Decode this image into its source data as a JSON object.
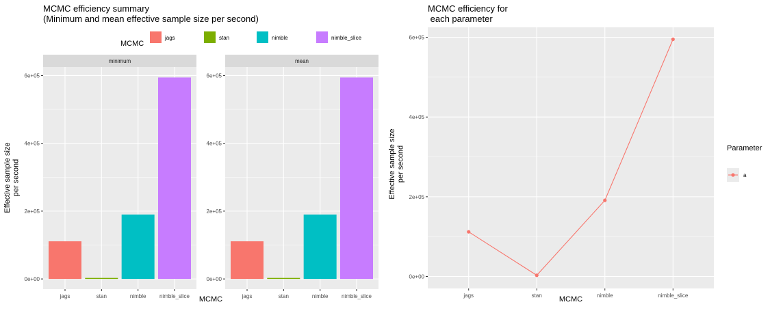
{
  "chart_data": [
    {
      "type": "bar",
      "title": "MCMC efficiency summary\n(Minimum and mean effective sample size per second)",
      "xlabel": "MCMC",
      "ylabel": "Effective sample size\nper second",
      "categories": [
        "jags",
        "stan",
        "nimble",
        "nimble_slice"
      ],
      "colors": [
        "#F8766D",
        "#7CAE00",
        "#00BFC4",
        "#C77CFF"
      ],
      "legend": {
        "title": "MCMC",
        "position": "top",
        "entries": [
          "jags",
          "stan",
          "nimble",
          "nimble_slice"
        ]
      },
      "facets": [
        {
          "name": "minimum",
          "values": [
            111000,
            3000,
            190000,
            594000
          ]
        },
        {
          "name": "mean",
          "values": [
            111000,
            3000,
            190000,
            594000
          ]
        }
      ],
      "ylim": [
        -30000,
        625000
      ],
      "yticks": [
        0,
        200000,
        400000,
        600000
      ],
      "ytick_labels": [
        "0e+00",
        "2e+05",
        "4e+05",
        "6e+05"
      ],
      "grid": true
    },
    {
      "type": "line",
      "title": "MCMC efficiency for\n each parameter",
      "xlabel": "MCMC",
      "ylabel": "Effective sample size\nper second",
      "categories": [
        "jags",
        "stan",
        "nimble",
        "nimble_slice"
      ],
      "series": [
        {
          "name": "a",
          "values": [
            112000,
            3000,
            191000,
            595000
          ],
          "color": "#F8766D"
        }
      ],
      "legend": {
        "title": "Parameter",
        "position": "right",
        "entries": [
          "a"
        ]
      },
      "ylim": [
        -30000,
        625000
      ],
      "yticks": [
        0,
        200000,
        400000,
        600000
      ],
      "ytick_labels": [
        "0e+00",
        "2e+05",
        "4e+05",
        "6e+05"
      ],
      "grid": true
    }
  ]
}
